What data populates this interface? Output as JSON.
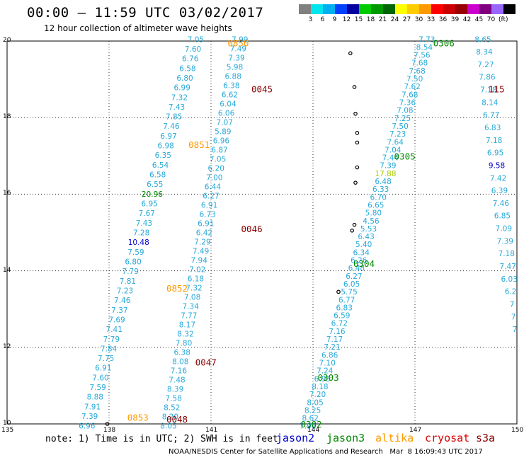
{
  "title": "00:00 – 11:59 UTC 03/02/2017",
  "subtitle": "12 hour collection of altimeter wave heights",
  "colorbar": {
    "colors": [
      "#808080",
      "#00e5ee",
      "#00b0f0",
      "#0040ff",
      "#0000a0",
      "#00cc00",
      "#009a00",
      "#006600",
      "#ffff00",
      "#ffcc00",
      "#ff9900",
      "#ff0000",
      "#cc0000",
      "#990000",
      "#cc00cc",
      "#800080",
      "#9966ff",
      "#000000"
    ],
    "labels": [
      "3",
      "6",
      "9",
      "12",
      "15",
      "18",
      "21",
      "24",
      "27",
      "30",
      "33",
      "36",
      "39",
      "42",
      "45",
      "70"
    ],
    "unit": "(ft)"
  },
  "axes": {
    "xlim": [
      135,
      150
    ],
    "ylim": [
      10,
      20
    ],
    "xticks": [
      "135",
      "138",
      "141",
      "144",
      "147",
      "150"
    ],
    "yticks": [
      "20",
      "18",
      "16",
      "14",
      "12",
      "10"
    ]
  },
  "legend": [
    {
      "name": "jason2",
      "color": "#0000cc"
    },
    {
      "name": "jason3",
      "color": "#008800"
    },
    {
      "name": "altika",
      "color": "#ff9900"
    },
    {
      "name": "cryosat",
      "color": "#dd0000"
    },
    {
      "name": "s3a",
      "color": "#880000"
    }
  ],
  "note": "note: 1) Time is in UTC; 2) SWH is in feet",
  "credit": "NOAA/NESDIS Center for Satellite Applications and Research   Mar  8 16:09:43 UTC 2017",
  "chart_data": {
    "type": "scatter",
    "tracks": [
      {
        "name": "track-a",
        "color": "#29a9d9",
        "lon_top": 140.55,
        "lon_bottom": 137.35,
        "values": [
          "7.05",
          "7.60",
          "6.76",
          "6.58",
          "6.80",
          "6.99",
          "7.32",
          "7.43",
          "7.85",
          "7.46",
          "6.97",
          "6.98",
          "6.35",
          "6.54",
          "6.58",
          "6.55",
          "20.96",
          "6.95",
          "7.67",
          "7.43",
          "7.28",
          "10.48",
          "7.59",
          "6.80",
          "7.79",
          "7.81",
          "7.23",
          "7.46",
          "7.37",
          "7.69",
          "7.41",
          "7.79",
          "7.84",
          "7.75",
          "6.91",
          "7.60",
          "7.59",
          "8.88",
          "7.91",
          "7.39",
          "6.96"
        ]
      },
      {
        "name": "track-b",
        "color": "#29a9d9",
        "lon_top": 141.85,
        "lon_bottom": 139.75,
        "values": [
          "7.99",
          "7.49",
          "7.39",
          "5.98",
          "6.88",
          "6.38",
          "6.62",
          "6.04",
          "6.06",
          "7.07",
          "5.89",
          "6.96",
          "6.87",
          "7.05",
          "6.20",
          "7.00",
          "6.44",
          "6.27",
          "6.91",
          "6.73",
          "6.91",
          "6.42",
          "7.29",
          "7.49",
          "7.94",
          "7.02",
          "6.18",
          "7.32",
          "7.08",
          "7.34",
          "7.77",
          "8.17",
          "8.32",
          "7.80",
          "6.38",
          "8.08",
          "7.16",
          "7.48",
          "8.39",
          "7.58",
          "8.52",
          "8.20",
          "8.05"
        ]
      },
      {
        "name": "track-c",
        "color": "#29a9d9",
        "lon_top": 147.35,
        "lon_bottom": 143.85,
        "values": [
          "7.73",
          "8.54",
          "7.56",
          "7.68",
          "7.68",
          "7.50",
          "7.62",
          "7.68",
          "7.36",
          "7.08",
          "7.25",
          "7.50",
          "7.23",
          "7.64",
          "7.04",
          "7.44",
          "7.39",
          "17.88",
          "6.48",
          "6.33",
          "6.70",
          "6.65",
          "5.80",
          "4.56",
          "5.53",
          "6.43",
          "5.40",
          "6.34",
          "6.26",
          "6.48",
          "6.27",
          "6.05",
          "5.75",
          "6.77",
          "6.83",
          "6.59",
          "6.72",
          "7.16",
          "7.17",
          "7.21",
          "6.86",
          "7.10",
          "7.24",
          "6.95",
          "8.18",
          "7.20",
          "8.05",
          "8.25",
          "8.62",
          "7.96"
        ]
      },
      {
        "name": "track-d",
        "color": "#29a9d9",
        "lon_top": 149.0,
        "lon_bottom": 150.25,
        "values": [
          "8.65",
          "8.34",
          "7.27",
          "7.86",
          "7.18",
          "8.14",
          "6.77",
          "6.83",
          "7.18",
          "6.95",
          "9.58",
          "7.42",
          "6.39",
          "7.46",
          "6.85",
          "7.09",
          "7.39",
          "7.18",
          "7.47",
          "6.03",
          "6.2",
          "7",
          "7",
          "7"
        ]
      }
    ],
    "time_labels": [
      {
        "text": "0850",
        "color": "#ff9900",
        "lon": 141.8,
        "lat": 19.95
      },
      {
        "text": "0045",
        "color": "#880000",
        "lon": 142.5,
        "lat": 18.75
      },
      {
        "text": "0851",
        "color": "#ff9900",
        "lon": 140.65,
        "lat": 17.3
      },
      {
        "text": "0046",
        "color": "#880000",
        "lon": 142.2,
        "lat": 15.1
      },
      {
        "text": "0852",
        "color": "#ff9900",
        "lon": 140.0,
        "lat": 13.55
      },
      {
        "text": "0047",
        "color": "#880000",
        "lon": 140.85,
        "lat": 11.62
      },
      {
        "text": "0853",
        "color": "#ff9900",
        "lon": 138.85,
        "lat": 10.18
      },
      {
        "text": "0048",
        "color": "#880000",
        "lon": 140.0,
        "lat": 10.13
      },
      {
        "text": "0306",
        "color": "#008800",
        "lon": 147.85,
        "lat": 19.95
      },
      {
        "text": "0305",
        "color": "#008800",
        "lon": 146.7,
        "lat": 17.0
      },
      {
        "text": "0304",
        "color": "#008800",
        "lon": 145.5,
        "lat": 14.2
      },
      {
        "text": "0303",
        "color": "#008800",
        "lon": 144.45,
        "lat": 11.22
      },
      {
        "text": "0302",
        "color": "#008800",
        "lon": 143.95,
        "lat": 10.0
      },
      {
        "text": "115",
        "color": "#880000",
        "lon": 149.4,
        "lat": 18.75
      }
    ],
    "highlight_values": [
      {
        "track": 0,
        "index": 16,
        "color": "#008800"
      },
      {
        "track": 0,
        "index": 21,
        "color": "#0000cc"
      },
      {
        "track": 2,
        "index": 17,
        "color": "#aacc00"
      },
      {
        "track": 3,
        "index": 10,
        "color": "#0000cc"
      }
    ],
    "islands": [
      {
        "lon": 145.1,
        "lat": 19.68
      },
      {
        "lon": 145.22,
        "lat": 18.8
      },
      {
        "lon": 145.25,
        "lat": 18.1
      },
      {
        "lon": 145.3,
        "lat": 17.6
      },
      {
        "lon": 145.3,
        "lat": 17.35
      },
      {
        "lon": 145.3,
        "lat": 16.7
      },
      {
        "lon": 145.25,
        "lat": 16.3
      },
      {
        "lon": 145.22,
        "lat": 15.2
      },
      {
        "lon": 145.15,
        "lat": 15.05
      },
      {
        "lon": 144.75,
        "lat": 13.45
      },
      {
        "lon": 137.95,
        "lat": 10.0
      }
    ]
  }
}
